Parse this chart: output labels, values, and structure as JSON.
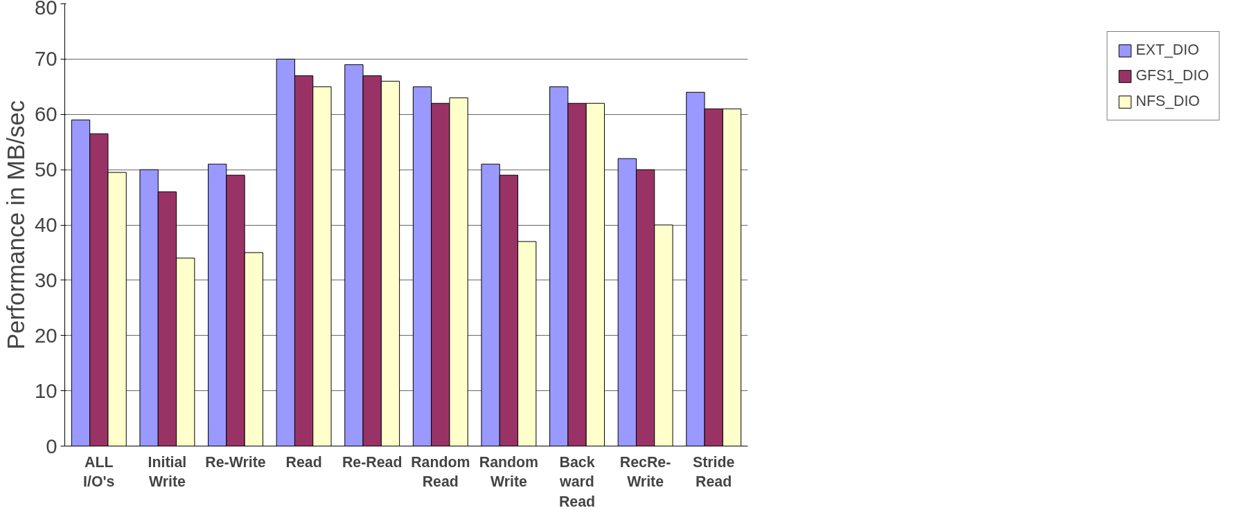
{
  "chart_data": {
    "type": "bar",
    "ylabel": "Performance in MB/sec",
    "categories": [
      "ALL\nI/O's",
      "Initial\nWrite",
      "Re-Write",
      "Read",
      "Re-Read",
      "Random\nRead",
      "Random\nWrite",
      "Back\nward\nRead",
      "RecRe-\nWrite",
      "Stride\nRead"
    ],
    "series": [
      {
        "name": "EXT_DIO",
        "color": "#9999ff",
        "values": [
          59,
          50,
          51,
          70,
          69,
          65,
          51,
          65,
          52,
          64
        ]
      },
      {
        "name": "GFS1_DIO",
        "color": "#993366",
        "values": [
          56.5,
          46,
          49,
          67,
          67,
          62,
          49,
          62,
          50,
          61
        ]
      },
      {
        "name": "NFS_DIO",
        "color": "#ffffcc",
        "values": [
          49.5,
          34,
          35,
          65,
          66,
          63,
          37,
          62,
          40,
          61
        ]
      }
    ],
    "ylim": [
      0,
      80
    ],
    "yticks": [
      0,
      10,
      20,
      30,
      40,
      50,
      60,
      70,
      80
    ],
    "grid": "y",
    "legend": "right"
  }
}
